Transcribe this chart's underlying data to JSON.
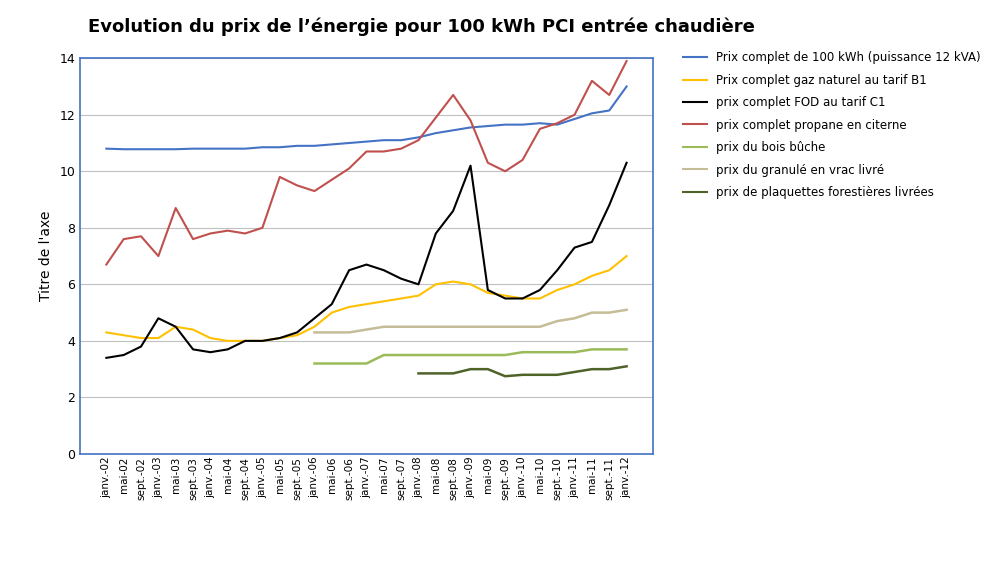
{
  "title": "Evolution du prix de l’énergie pour 100 kWh PCI entrée chaudière",
  "ylabel": "Titre de l'axe",
  "ylim": [
    0,
    14
  ],
  "yticks": [
    0,
    2,
    4,
    6,
    8,
    10,
    12,
    14
  ],
  "x_labels": [
    "janv.-02",
    "mai-02",
    "sept.-02",
    "janv.-03",
    "mai-03",
    "sept.-03",
    "janv.-04",
    "mai-04",
    "sept.-04",
    "janv.-05",
    "mai-05",
    "sept.-05",
    "janv.-06",
    "mai-06",
    "sept.-06",
    "janv.-07",
    "mai-07",
    "sept.-07",
    "janv.-08",
    "mai-08",
    "sept.-08",
    "janv.-09",
    "mai-09",
    "sept.-09",
    "janv.-10",
    "mai-10",
    "sept.-10",
    "janv.-11",
    "mai-11",
    "sept.-11",
    "janv.-12"
  ],
  "background_color": "#FFFFFF",
  "plot_bg_color": "#FFFFFF",
  "grid_color": "#C0C0C0",
  "border_color": "#4472C4",
  "series": [
    {
      "label": "Prix complet de 100 kWh (puissance 12 kVA)",
      "color": "#4472C4",
      "lw": 1.5,
      "data": [
        10.8,
        10.78,
        10.78,
        10.78,
        10.78,
        10.8,
        10.8,
        10.8,
        10.8,
        10.85,
        10.85,
        10.9,
        10.9,
        10.95,
        11.0,
        11.05,
        11.1,
        11.1,
        11.2,
        11.35,
        11.45,
        11.55,
        11.6,
        11.65,
        11.65,
        11.7,
        11.65,
        11.85,
        12.05,
        12.15,
        13.0
      ]
    },
    {
      "label": "Prix complet gaz naturel au tarif B1",
      "color": "#FFC000",
      "lw": 1.5,
      "data": [
        4.3,
        4.2,
        4.1,
        4.1,
        4.5,
        4.4,
        4.1,
        4.0,
        4.0,
        4.0,
        4.1,
        4.2,
        4.5,
        5.0,
        5.2,
        5.3,
        5.4,
        5.5,
        5.6,
        6.0,
        6.1,
        6.0,
        5.7,
        5.6,
        5.5,
        5.5,
        5.8,
        6.0,
        6.3,
        6.5,
        7.0
      ]
    },
    {
      "label": "prix complet FOD au tarif C1",
      "color": "#000000",
      "lw": 1.5,
      "data": [
        3.4,
        3.5,
        3.8,
        4.8,
        4.5,
        3.7,
        3.6,
        3.7,
        4.0,
        4.0,
        4.1,
        4.3,
        4.8,
        5.3,
        6.5,
        6.7,
        6.5,
        6.2,
        6.0,
        7.8,
        8.6,
        10.2,
        5.8,
        5.5,
        5.5,
        5.8,
        6.5,
        7.3,
        7.5,
        8.8,
        10.3
      ]
    },
    {
      "label": "prix complet propane en citerne",
      "color": "#C0504D",
      "lw": 1.5,
      "data": [
        6.7,
        7.6,
        7.7,
        7.0,
        8.7,
        7.6,
        7.8,
        7.9,
        7.8,
        8.0,
        9.8,
        9.5,
        9.3,
        9.7,
        10.1,
        10.7,
        10.7,
        10.8,
        11.1,
        11.9,
        12.7,
        11.8,
        10.3,
        10.0,
        10.4,
        11.5,
        11.7,
        12.0,
        13.2,
        12.7,
        13.9
      ]
    },
    {
      "label": "prix du bois bûche",
      "color": "#9BBB59",
      "lw": 1.8,
      "data": [
        null,
        null,
        null,
        null,
        null,
        null,
        null,
        null,
        null,
        null,
        null,
        null,
        3.2,
        3.2,
        3.2,
        3.2,
        3.5,
        3.5,
        3.5,
        3.5,
        3.5,
        3.5,
        3.5,
        3.5,
        3.6,
        3.6,
        3.6,
        3.6,
        3.7,
        3.7,
        3.7
      ]
    },
    {
      "label": "prix du granulé en vrac livré",
      "color": "#C4BD97",
      "lw": 1.8,
      "data": [
        null,
        null,
        null,
        null,
        null,
        null,
        null,
        null,
        null,
        null,
        null,
        null,
        4.3,
        4.3,
        4.3,
        4.4,
        4.5,
        4.5,
        4.5,
        4.5,
        4.5,
        4.5,
        4.5,
        4.5,
        4.5,
        4.5,
        4.7,
        4.8,
        5.0,
        5.0,
        5.1
      ]
    },
    {
      "label": "prix de plaquettes forestières livrées",
      "color": "#4F6228",
      "lw": 1.8,
      "data": [
        null,
        null,
        null,
        null,
        null,
        null,
        null,
        null,
        null,
        null,
        null,
        null,
        null,
        null,
        null,
        null,
        null,
        null,
        2.85,
        2.85,
        2.85,
        3.0,
        3.0,
        2.75,
        2.8,
        2.8,
        2.8,
        2.9,
        3.0,
        3.0,
        3.1
      ]
    }
  ]
}
